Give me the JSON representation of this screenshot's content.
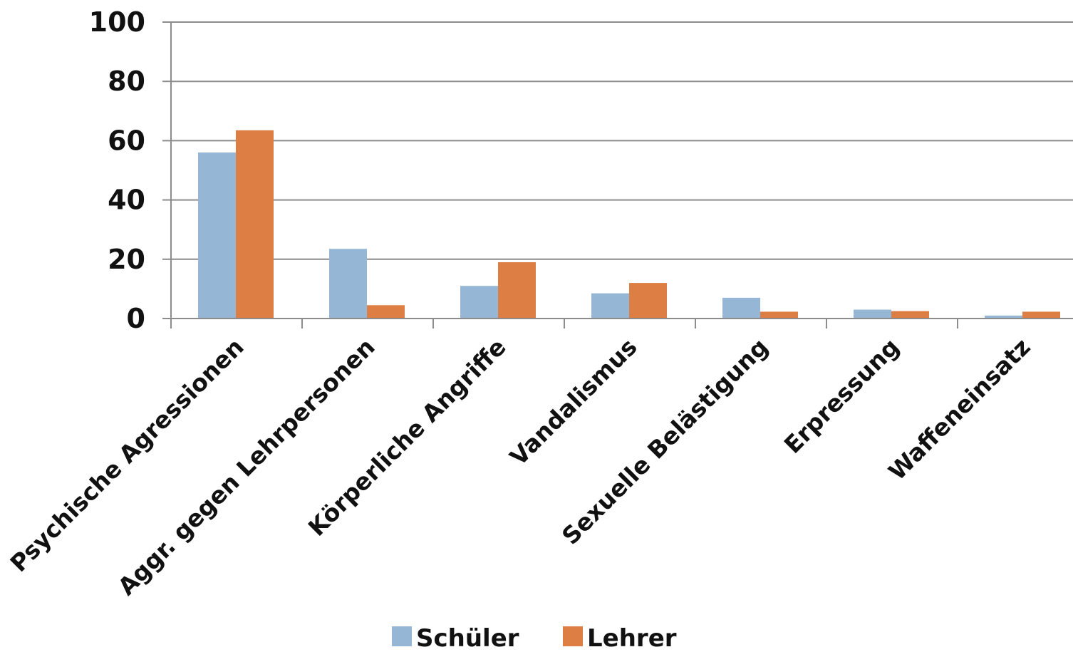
{
  "chart_data": {
    "type": "bar",
    "categories": [
      "Psychische Agressionen",
      "Aggr. gegen Lehrpersonen",
      "Körperliche Angriffe",
      "Vandalismus",
      "Sexuelle Belästigung",
      "Erpressung",
      "Waffeneinsatz"
    ],
    "series": [
      {
        "name": "Schüler",
        "color": "#95b6d5",
        "values": [
          56,
          23.5,
          11,
          8.5,
          7,
          3,
          1
        ]
      },
      {
        "name": "Lehrer",
        "color": "#dd7f45",
        "values": [
          63.5,
          4.5,
          19,
          12,
          2.3,
          2.5,
          2.3
        ]
      }
    ],
    "ylim": [
      0,
      100
    ],
    "yticks": [
      0,
      20,
      40,
      60,
      80,
      100
    ],
    "grid": true,
    "legend_position": "bottom",
    "title": "",
    "xlabel": "",
    "ylabel": "",
    "axis_color": "#8c8c8c"
  }
}
